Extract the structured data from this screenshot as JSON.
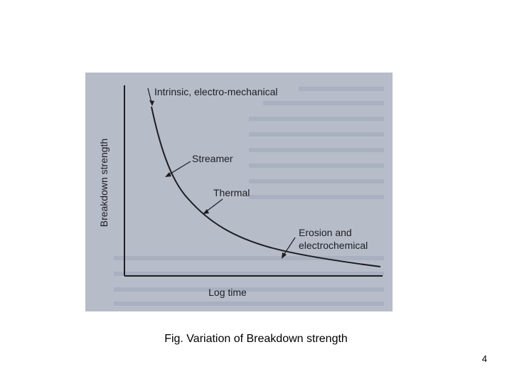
{
  "figure": {
    "caption": "Fig. Variation of Breakdown strength",
    "y_axis_label": "Breakdown strength",
    "x_axis_label": "Log time",
    "regions": [
      {
        "name": "intrinsic",
        "label": "Intrinsic, electro-mechanical"
      },
      {
        "name": "streamer",
        "label": "Streamer"
      },
      {
        "name": "thermal",
        "label": "Thermal"
      },
      {
        "name": "erosion-line-1",
        "label": "Erosion and"
      },
      {
        "name": "erosion-line-2",
        "label": "electrochemical"
      }
    ],
    "colors": {
      "panel_background": "#b7bcc9",
      "ink": "#1e1e22"
    }
  },
  "page": {
    "number": "4"
  }
}
